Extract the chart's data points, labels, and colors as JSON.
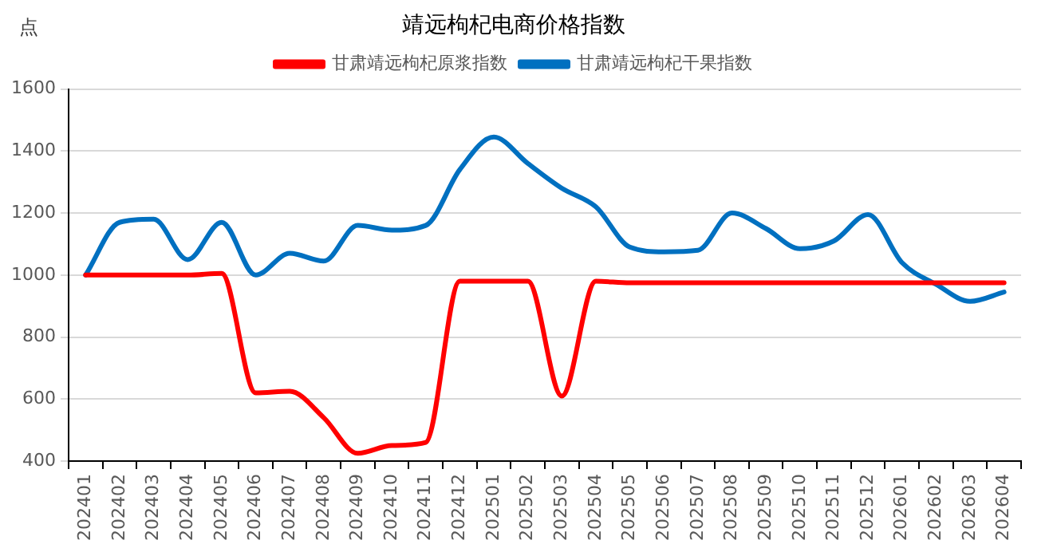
{
  "chart_data": {
    "type": "line",
    "title": "靖远枸杞电商价格指数",
    "ylabel": "点",
    "categories": [
      "202401",
      "202402",
      "202403",
      "202404",
      "202405",
      "202406",
      "202407",
      "202408",
      "202409",
      "202410",
      "202411",
      "202412",
      "202501",
      "202502",
      "202503",
      "202504",
      "202505",
      "202506",
      "202507",
      "202508",
      "202509",
      "202510",
      "202511",
      "202512",
      "202601",
      "202602",
      "202603",
      "202604"
    ],
    "series": [
      {
        "name": "甘肃靖远枸杞原浆指数",
        "color": "#ff0000",
        "values": [
          1000,
          1000,
          1000,
          1000,
          1005,
          620,
          625,
          540,
          425,
          450,
          460,
          980,
          980,
          980,
          610,
          980,
          975,
          975,
          975,
          975,
          975,
          975,
          975,
          975,
          975,
          975,
          975,
          975
        ]
      },
      {
        "name": "甘肃靖远枸杞干果指数",
        "color": "#0070c0",
        "values": [
          1000,
          1170,
          1180,
          1050,
          1170,
          1000,
          1070,
          1045,
          1160,
          1145,
          1160,
          1340,
          1445,
          1360,
          1280,
          1220,
          1090,
          1075,
          1080,
          1200,
          1150,
          1085,
          1110,
          1195,
          1040,
          970,
          915,
          945
        ]
      }
    ],
    "ylim": [
      400,
      1600
    ],
    "yticks": [
      400,
      600,
      800,
      1000,
      1200,
      1400,
      1600
    ],
    "grid": "y",
    "legend": "top",
    "marker": "none",
    "line_style": "solid"
  }
}
